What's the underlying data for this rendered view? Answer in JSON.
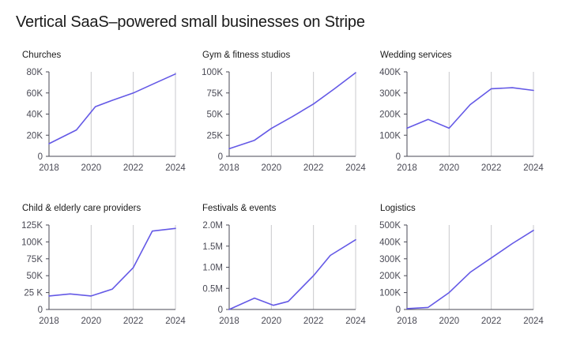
{
  "page": {
    "title": "Vertical SaaS–powered small businesses on Stripe"
  },
  "colors": {
    "line": "#6459e6",
    "axis": "#4a4a55",
    "grid": "#c8c8cc",
    "text": "#1a1a1a"
  },
  "chart_data": [
    {
      "type": "line",
      "title": "Churches",
      "x": [
        2018,
        2019.3,
        2020.2,
        2021,
        2022,
        2023,
        2024
      ],
      "values": [
        12000,
        25000,
        47000,
        53000,
        60000,
        69000,
        78000
      ],
      "ylim": [
        0,
        80000
      ],
      "yticks": [
        0,
        20000,
        40000,
        60000,
        80000
      ],
      "ytick_labels": [
        "0",
        "20K",
        "40K",
        "60K",
        "80K"
      ],
      "xlim": [
        2018,
        2024
      ],
      "xticks": [
        2018,
        2020,
        2022,
        2024
      ],
      "xtick_labels": [
        "2018",
        "2020",
        "2022",
        "2024"
      ],
      "grid": "vertical"
    },
    {
      "type": "line",
      "title": "Gym & fitness studios",
      "x": [
        2018,
        2019.2,
        2020,
        2021,
        2022,
        2023,
        2024
      ],
      "values": [
        9000,
        19000,
        33000,
        47000,
        62000,
        80000,
        99000
      ],
      "ylim": [
        0,
        100000
      ],
      "yticks": [
        0,
        25000,
        50000,
        75000,
        100000
      ],
      "ytick_labels": [
        "0",
        "25K",
        "50K",
        "75K",
        "100K"
      ],
      "xlim": [
        2018,
        2024
      ],
      "xticks": [
        2018,
        2020,
        2022,
        2024
      ],
      "xtick_labels": [
        "2018",
        "2020",
        "2022",
        "2024"
      ],
      "grid": "vertical"
    },
    {
      "type": "line",
      "title": "Wedding services",
      "x": [
        2018,
        2019,
        2020,
        2021,
        2022,
        2023,
        2024
      ],
      "values": [
        133000,
        175000,
        133000,
        245000,
        320000,
        325000,
        312000
      ],
      "ylim": [
        0,
        400000
      ],
      "yticks": [
        0,
        100000,
        200000,
        300000,
        400000
      ],
      "ytick_labels": [
        "0",
        "100K",
        "200K",
        "300K",
        "400K"
      ],
      "xlim": [
        2018,
        2024
      ],
      "xticks": [
        2018,
        2020,
        2022,
        2024
      ],
      "xtick_labels": [
        "2018",
        "2020",
        "2022",
        "2024"
      ],
      "grid": "vertical"
    },
    {
      "type": "line",
      "title": "Child & elderly care providers",
      "x": [
        2018,
        2019,
        2020,
        2021,
        2022,
        2022.9,
        2024
      ],
      "values": [
        20000,
        23000,
        20000,
        30000,
        62000,
        116000,
        120000
      ],
      "ylim": [
        0,
        125000
      ],
      "yticks": [
        0,
        25000,
        50000,
        75000,
        100000,
        125000
      ],
      "ytick_labels": [
        "0",
        "25 K",
        "50K",
        "75K",
        "100K",
        "125K"
      ],
      "xlim": [
        2018,
        2024
      ],
      "xticks": [
        2018,
        2020,
        2022,
        2024
      ],
      "xtick_labels": [
        "2018",
        "2020",
        "2022",
        "2024"
      ],
      "grid": "vertical"
    },
    {
      "type": "line",
      "title": "Festivals & events",
      "x": [
        2018,
        2019.2,
        2020.1,
        2020.8,
        2022,
        2022.8,
        2024
      ],
      "values": [
        0,
        270000,
        100000,
        190000,
        800000,
        1280000,
        1650000
      ],
      "ylim": [
        0,
        2000000
      ],
      "yticks": [
        0,
        500000,
        1000000,
        1500000,
        2000000
      ],
      "ytick_labels": [
        "0",
        "0.5M",
        "1.0M",
        "1.5M",
        "2.0M"
      ],
      "xlim": [
        2018,
        2024
      ],
      "xticks": [
        2018,
        2020,
        2022,
        2024
      ],
      "xtick_labels": [
        "2018",
        "2020",
        "2022",
        "2024"
      ],
      "grid": "vertical"
    },
    {
      "type": "line",
      "title": "Logistics",
      "x": [
        2018,
        2019,
        2020,
        2021,
        2022,
        2023,
        2024
      ],
      "values": [
        5000,
        12000,
        100000,
        220000,
        305000,
        390000,
        468000
      ],
      "ylim": [
        0,
        500000
      ],
      "yticks": [
        0,
        100000,
        200000,
        300000,
        400000,
        500000
      ],
      "ytick_labels": [
        "0",
        "100K",
        "200K",
        "300K",
        "400K",
        "500K"
      ],
      "xlim": [
        2018,
        2024
      ],
      "xticks": [
        2018,
        2020,
        2022,
        2024
      ],
      "xtick_labels": [
        "2018",
        "2020",
        "2022",
        "2024"
      ],
      "grid": "vertical"
    }
  ]
}
